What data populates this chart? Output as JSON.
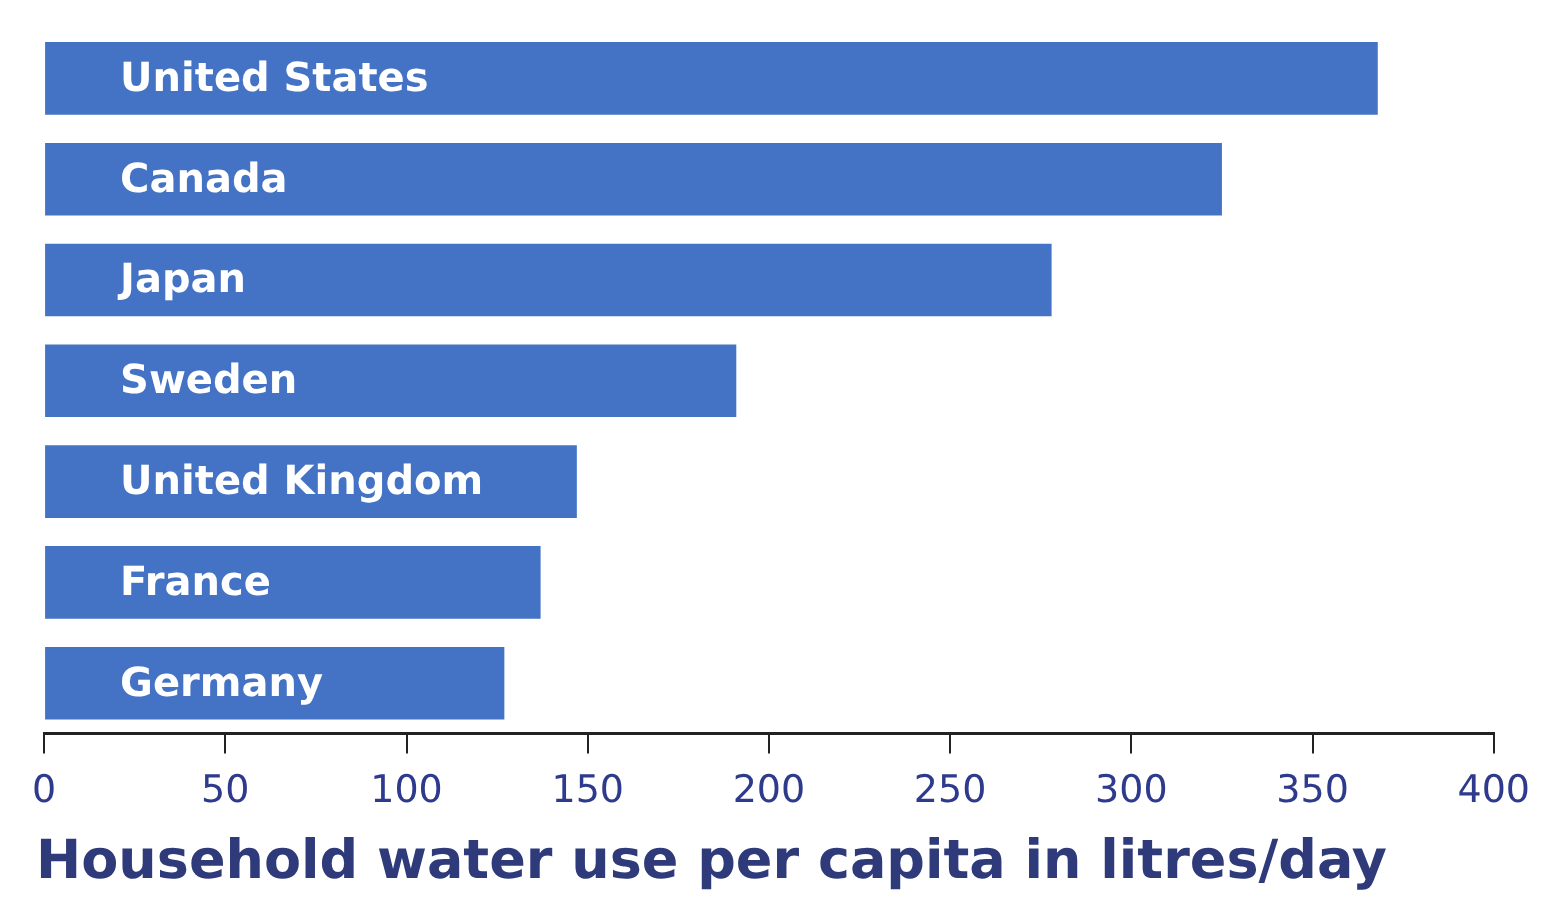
{
  "chart_data": {
    "type": "bar",
    "orientation": "horizontal",
    "title": "Household water use per capita in litres/day",
    "categories": [
      "United States",
      "Canada",
      "Japan",
      "Sweden",
      "United Kingdom",
      "France",
      "Germany"
    ],
    "values": [
      368,
      325,
      278,
      191,
      147,
      137,
      127
    ],
    "color": "#4472c4",
    "xlim": [
      0,
      400
    ],
    "xticks": [
      0,
      50,
      100,
      150,
      200,
      250,
      300,
      350,
      400
    ],
    "grid": false,
    "legend": false
  }
}
